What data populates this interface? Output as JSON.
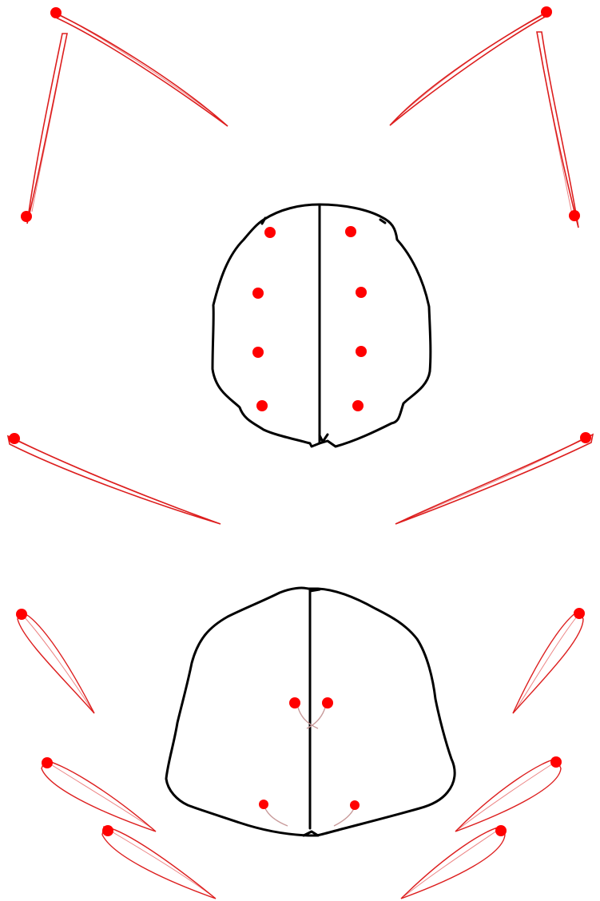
{
  "colors": {
    "background": "#ffffff",
    "outline": "#000000",
    "marker": "#ff0000",
    "trail": "#dd1e1e",
    "hook_trail": "#c89a9a"
  },
  "figures": [
    {
      "name": "upper-body-outline",
      "markers": [
        "front-left-1",
        "front-right-1",
        "left-2",
        "right-2",
        "left-3",
        "right-3",
        "left-4",
        "right-4"
      ]
    },
    {
      "name": "lower-body-outline",
      "markers": [
        "inner-left-upper",
        "inner-right-upper",
        "inner-left-lower",
        "inner-right-lower"
      ]
    }
  ],
  "appendages": {
    "thin_spines": 6,
    "leaf_shapes": 6
  }
}
